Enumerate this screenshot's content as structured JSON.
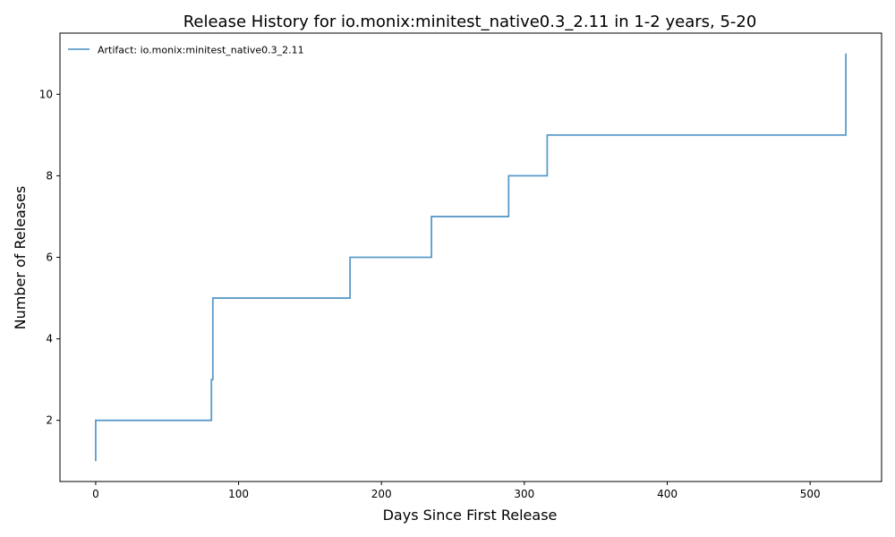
{
  "chart_data": {
    "type": "line",
    "title": "Release History for io.monix:minitest_native0.3_2.11 in 1-2 years, 5-20",
    "xlabel": "Days Since First Release",
    "ylabel": "Number of Releases",
    "xlim": [
      -25,
      550
    ],
    "ylim": [
      0.5,
      11.5
    ],
    "x_ticks": [
      0,
      100,
      200,
      300,
      400,
      500
    ],
    "y_ticks": [
      2,
      4,
      6,
      8,
      10
    ],
    "grid": false,
    "legend_position": "top-left",
    "series": [
      {
        "name": "Artifact: io.monix:minitest_native0.3_2.11",
        "color": "#5b9bc9",
        "step": "post",
        "x": [
          0,
          0,
          81,
          82,
          178,
          235,
          289,
          316,
          525,
          525
        ],
        "y": [
          1,
          2,
          3,
          5,
          6,
          7,
          8,
          9,
          10,
          11
        ]
      }
    ]
  }
}
